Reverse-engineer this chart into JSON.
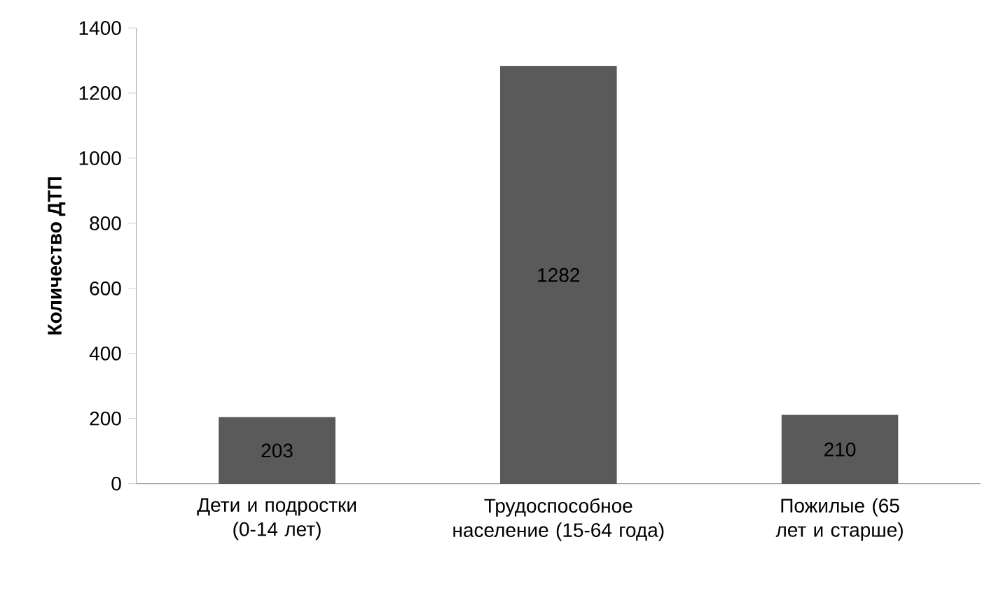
{
  "chart_data": {
    "type": "bar",
    "ylabel": "Количество ДТП",
    "categories": [
      "Дети и подростки (0-14 лет)",
      "Трудоспособное население (15-64 года)",
      "Пожилые (65 лет и старше)"
    ],
    "values": [
      203,
      1282,
      210
    ],
    "color": "#5a5a5a",
    "ylim": [
      0,
      1400
    ],
    "yticks": [
      0,
      200,
      400,
      600,
      800,
      1000,
      1200,
      1400
    ],
    "grid": false,
    "data_labels": true
  }
}
